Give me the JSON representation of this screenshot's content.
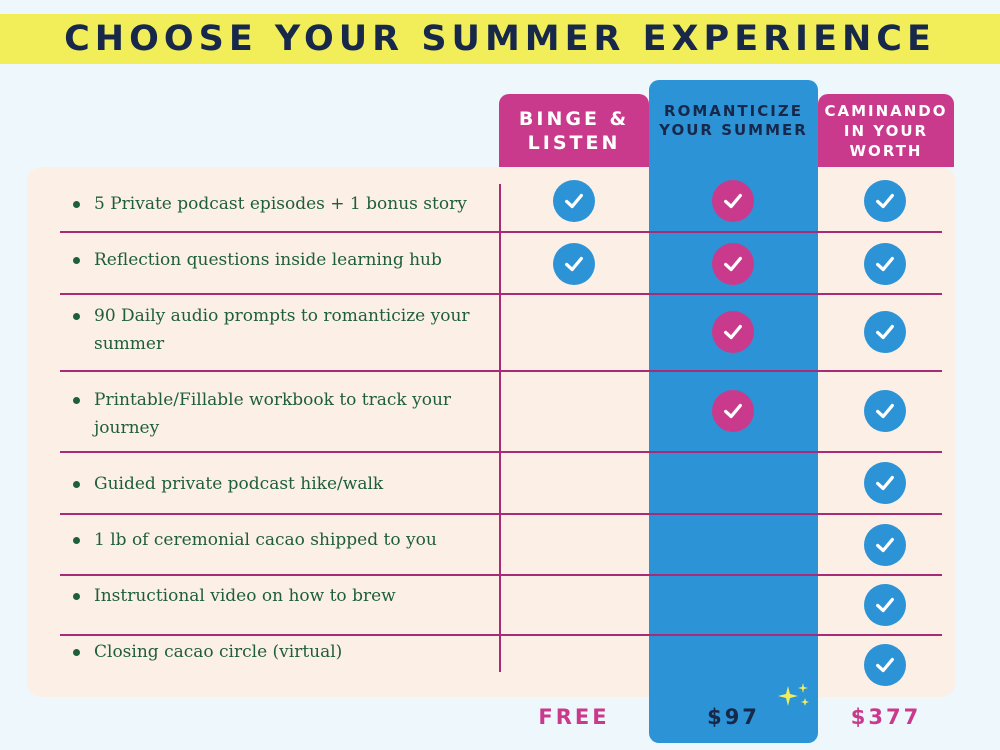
{
  "title": "CHOOSE YOUR SUMMER EXPERIENCE",
  "columns": [
    {
      "name": "BINGE & LISTEN",
      "price": "FREE"
    },
    {
      "name": "ROMANTICIZE YOUR SUMMER",
      "price": "$97"
    },
    {
      "name": "CAMINANDO IN YOUR WORTH",
      "price": "$377"
    }
  ],
  "features": [
    {
      "text": "5 Private podcast episodes + 1 bonus story",
      "included": [
        true,
        true,
        true
      ]
    },
    {
      "text": "Reflection questions inside learning hub",
      "included": [
        true,
        true,
        true
      ]
    },
    {
      "text": "90 Daily audio prompts to romanticize your summer",
      "included": [
        false,
        true,
        true
      ]
    },
    {
      "text": "Printable/Fillable workbook to track your journey",
      "included": [
        false,
        true,
        true
      ]
    },
    {
      "text": "Guided private podcast hike/walk",
      "included": [
        false,
        false,
        true
      ]
    },
    {
      "text": "1 lb of ceremonial cacao shipped to you",
      "included": [
        false,
        false,
        true
      ]
    },
    {
      "text": "Instructional video on how to brew",
      "included": [
        false,
        false,
        true
      ]
    },
    {
      "text": "Closing cacao circle (virtual)",
      "included": [
        false,
        false,
        true
      ]
    }
  ],
  "colors": {
    "blue": "#2b93d6",
    "pink": "#c93a8c",
    "yellow": "#f2ee5a",
    "navy": "#17284a",
    "green": "#1f5e3a"
  },
  "icons": {
    "check": "check-icon",
    "sparkle": "sparkle-icon"
  }
}
